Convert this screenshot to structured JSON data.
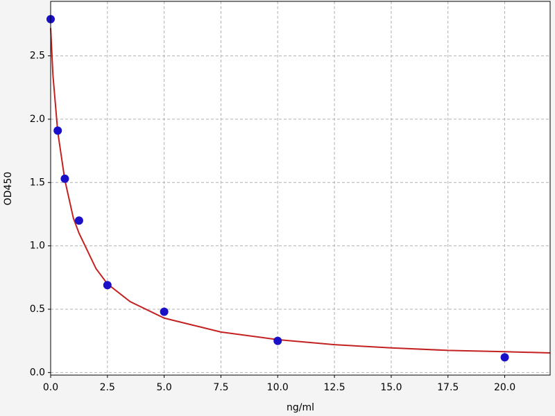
{
  "chart_data": {
    "type": "scatter",
    "xlabel": "ng/ml",
    "ylabel": "OD450",
    "xlim": [
      0,
      22
    ],
    "ylim": [
      -0.02,
      2.93
    ],
    "xticks": [
      {
        "value": 0,
        "label": "0.0"
      },
      {
        "value": 2.5,
        "label": "2.5"
      },
      {
        "value": 5,
        "label": "5.0"
      },
      {
        "value": 7.5,
        "label": "7.5"
      },
      {
        "value": 10,
        "label": "10.0"
      },
      {
        "value": 12.5,
        "label": "12.5"
      },
      {
        "value": 15,
        "label": "15.0"
      },
      {
        "value": 17.5,
        "label": "17.5"
      },
      {
        "value": 20,
        "label": "20.0"
      }
    ],
    "yticks": [
      {
        "value": 0,
        "label": "0.0"
      },
      {
        "value": 0.5,
        "label": "0.5"
      },
      {
        "value": 1,
        "label": "1.0"
      },
      {
        "value": 1.5,
        "label": "1.5"
      },
      {
        "value": 2,
        "label": "2.0"
      },
      {
        "value": 2.5,
        "label": "2.5"
      }
    ],
    "grid": true,
    "series": [
      {
        "kind": "line",
        "color": "#c42020",
        "x": [
          0,
          0.1,
          0.3125,
          0.625,
          1,
          1.25,
          2,
          2.5,
          3.5,
          5,
          7.5,
          10,
          12.5,
          15,
          17.5,
          20,
          22
        ],
        "values": [
          2.72,
          2.35,
          1.9,
          1.52,
          1.22,
          1.1,
          0.82,
          0.7,
          0.56,
          0.43,
          0.32,
          0.26,
          0.22,
          0.195,
          0.175,
          0.165,
          0.155
        ]
      },
      {
        "kind": "scatter",
        "color": "#1a10c8",
        "x": [
          0,
          0.3125,
          0.625,
          1.25,
          2.5,
          5,
          10,
          20
        ],
        "values": [
          2.79,
          1.91,
          1.53,
          1.2,
          0.69,
          0.48,
          0.25,
          0.12
        ]
      }
    ]
  }
}
